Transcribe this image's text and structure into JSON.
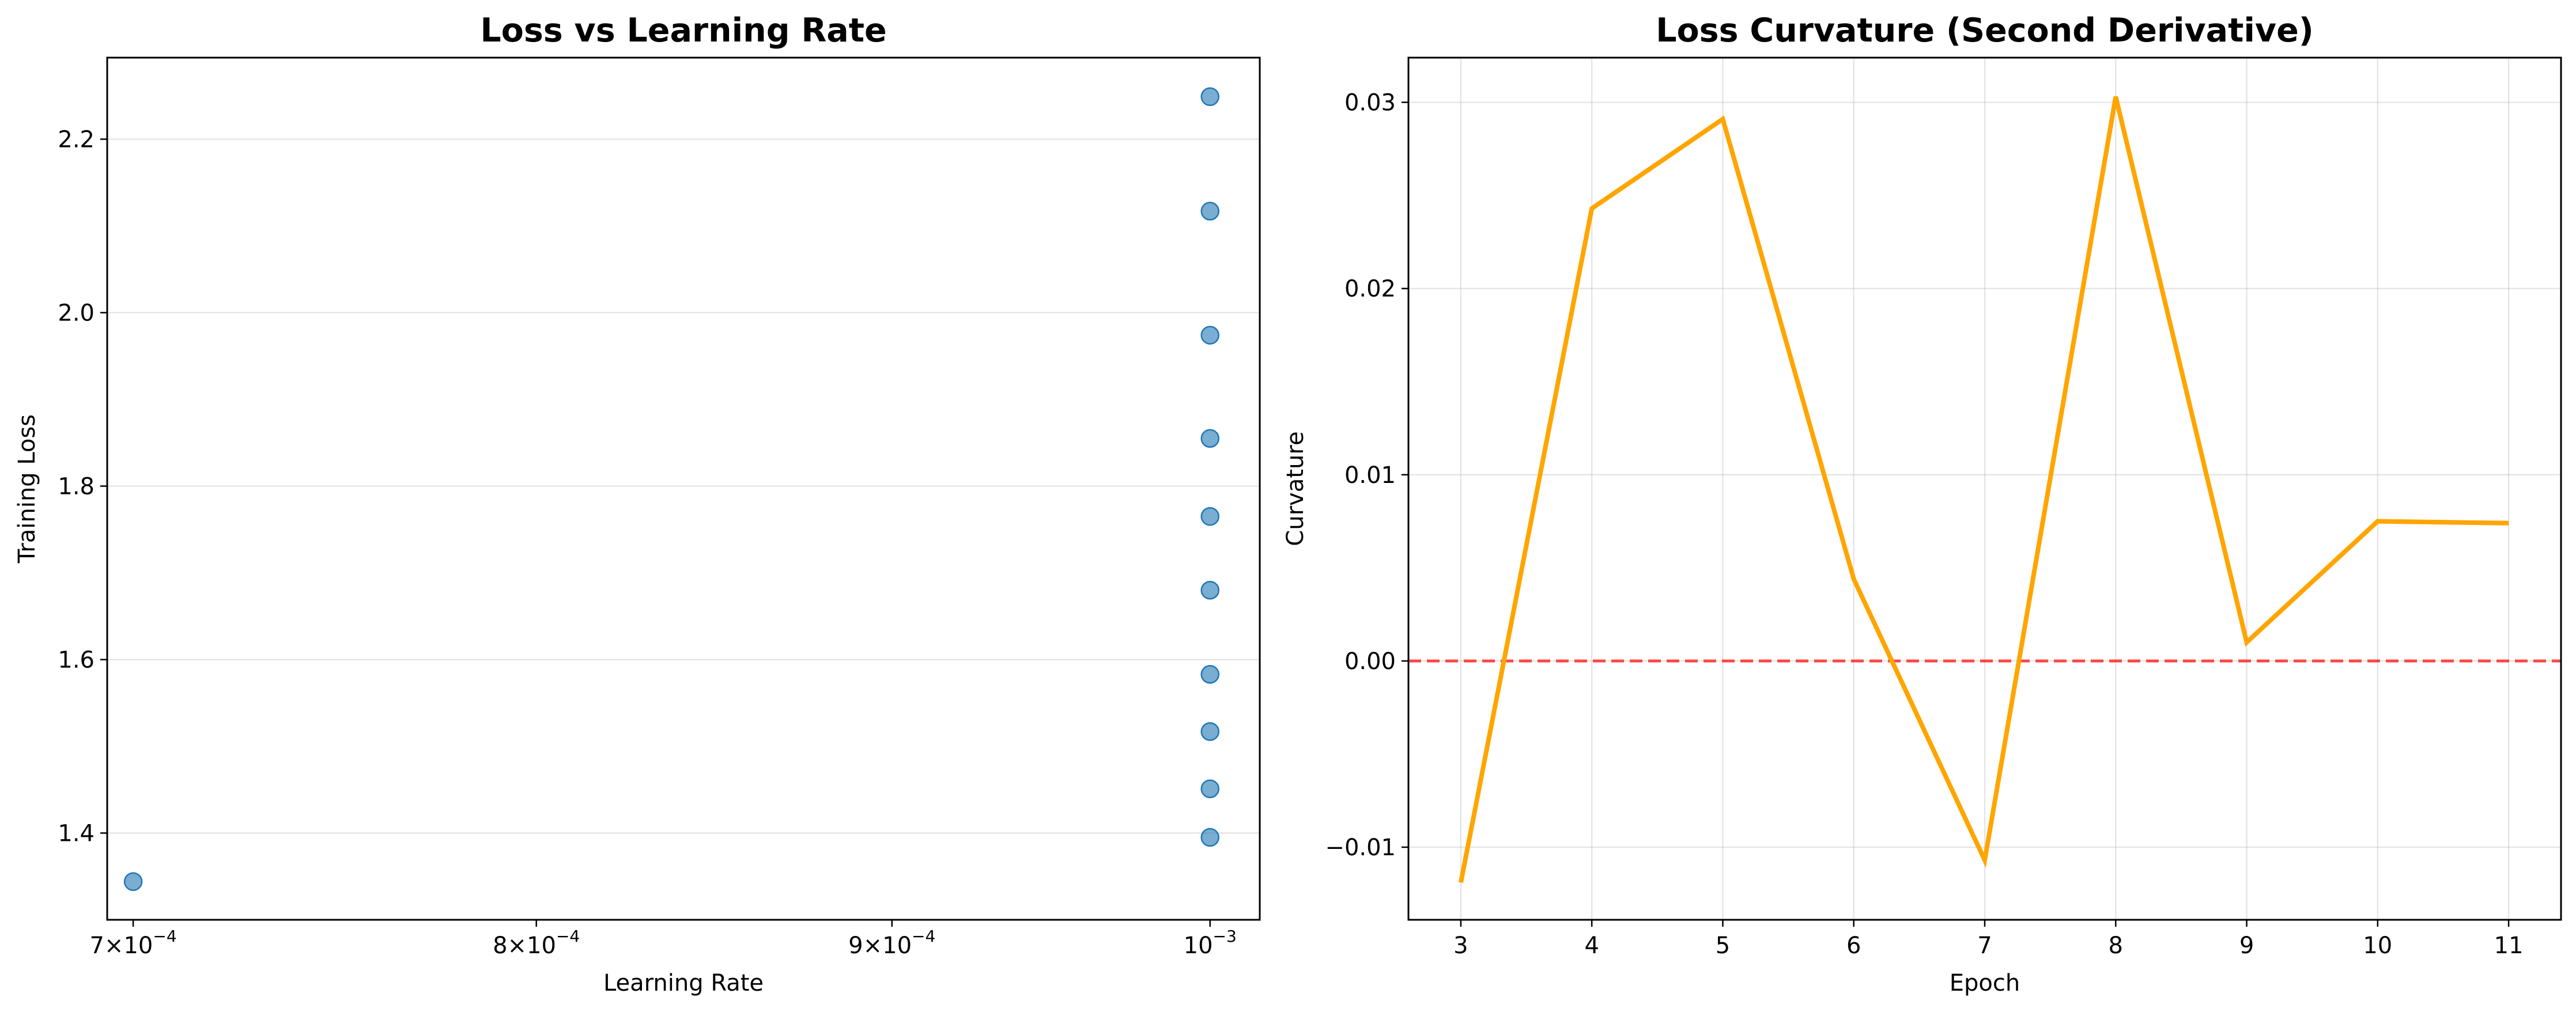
{
  "chart_data": [
    {
      "type": "scatter",
      "title": "Loss vs Learning Rate",
      "xlabel": "Learning Rate",
      "ylabel": "Training Loss",
      "xscale": "log",
      "xlim": [
        0.000694,
        0.0010166
      ],
      "ylim": [
        1.3,
        2.294
      ],
      "xticks": [
        {
          "value": 0.0007,
          "mantissa": "7",
          "exponent": "−4"
        },
        {
          "value": 0.0008,
          "mantissa": "8",
          "exponent": "−4"
        },
        {
          "value": 0.0009,
          "mantissa": "9",
          "exponent": "−4"
        },
        {
          "value": 0.001,
          "mantissa": "",
          "exponent": "−3"
        }
      ],
      "yticks": [
        1.4,
        1.6,
        1.8,
        2.0,
        2.2
      ],
      "ytick_labels": [
        "1.4",
        "1.6",
        "1.8",
        "2.0",
        "2.2"
      ],
      "grid": "y",
      "color": "#1f77b4",
      "points": [
        {
          "x": 0.0007,
          "y": 1.344
        },
        {
          "x": 0.001,
          "y": 2.249
        },
        {
          "x": 0.001,
          "y": 2.117
        },
        {
          "x": 0.001,
          "y": 1.974
        },
        {
          "x": 0.001,
          "y": 1.855
        },
        {
          "x": 0.001,
          "y": 1.765
        },
        {
          "x": 0.001,
          "y": 1.68
        },
        {
          "x": 0.001,
          "y": 1.583
        },
        {
          "x": 0.001,
          "y": 1.517
        },
        {
          "x": 0.001,
          "y": 1.451
        },
        {
          "x": 0.001,
          "y": 1.395
        }
      ]
    },
    {
      "type": "line",
      "title": "Loss Curvature (Second Derivative)",
      "xlabel": "Epoch",
      "ylabel": "Curvature",
      "xlim": [
        2.6,
        11.4
      ],
      "ylim": [
        -0.0139,
        0.0324
      ],
      "xticks": [
        3,
        4,
        5,
        6,
        7,
        8,
        9,
        10,
        11
      ],
      "xtick_labels": [
        "3",
        "4",
        "5",
        "6",
        "7",
        "8",
        "9",
        "10",
        "11"
      ],
      "yticks": [
        -0.01,
        0.0,
        0.01,
        0.02,
        0.03
      ],
      "ytick_labels": [
        "−0.01",
        "0.00",
        "0.01",
        "0.02",
        "0.03"
      ],
      "grid": "both",
      "color": "#ffa500",
      "reference_line": {
        "y": 0.0,
        "color": "#ff0000",
        "style": "dashed"
      },
      "x": [
        3,
        4,
        5,
        6,
        7,
        8,
        9,
        10,
        11
      ],
      "y": [
        -0.0119,
        0.0243,
        0.0291,
        0.0044,
        -0.0107,
        0.0303,
        0.001,
        0.0075,
        0.0074
      ]
    }
  ]
}
